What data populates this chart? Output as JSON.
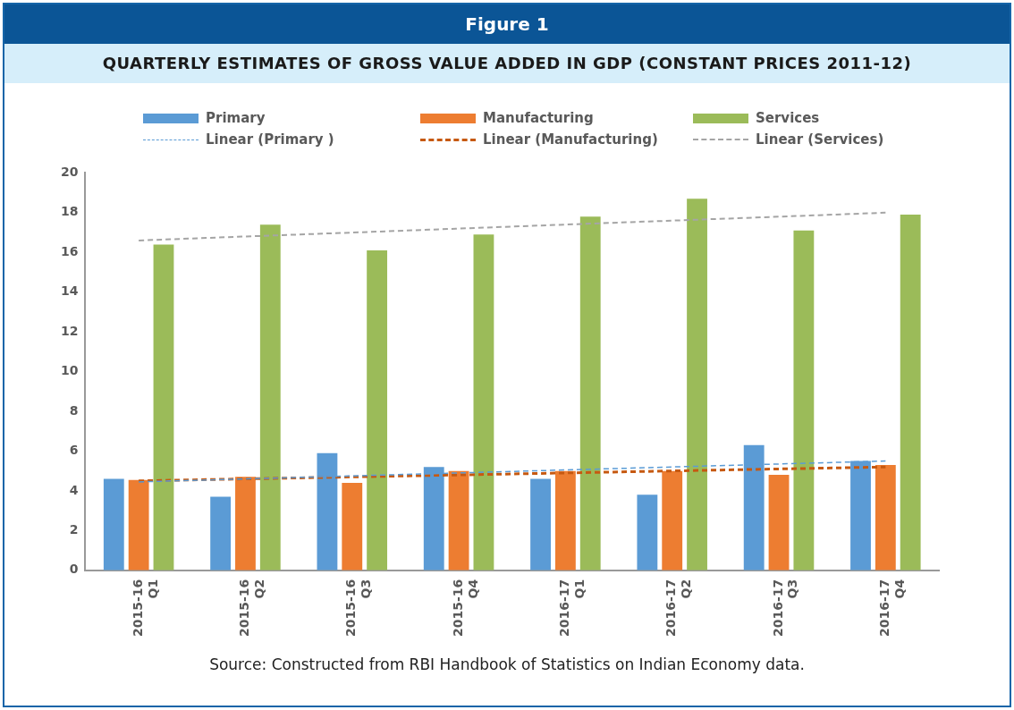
{
  "chart_data": {
    "type": "bar",
    "title": "Figure 1",
    "subtitle": "QUARTERLY ESTIMATES OF GROSS VALUE ADDED IN GDP (CONSTANT PRICES 2011-12)",
    "categories": [
      "2015-16 Q1",
      "2015-16 Q2",
      "2015-16 Q3",
      "2015-16 Q4",
      "2016-17 Q1",
      "2016-17 Q2",
      "2016-17 Q3",
      "2016-17 Q4"
    ],
    "series": [
      {
        "name": "Primary",
        "color": "#5b9bd5",
        "values": [
          4.6,
          3.7,
          5.9,
          5.2,
          4.6,
          3.8,
          6.3,
          5.5
        ]
      },
      {
        "name": "Manufacturing",
        "color": "#ed7d31",
        "values": [
          4.55,
          4.7,
          4.4,
          5.0,
          5.0,
          5.0,
          4.8,
          5.3
        ]
      },
      {
        "name": "Services",
        "color": "#9bbb59",
        "values": [
          16.4,
          17.4,
          16.1,
          16.9,
          17.8,
          18.7,
          17.1,
          17.9
        ]
      },
      {
        "name": "Linear (Primary )",
        "type": "line",
        "line_style": "dashed",
        "marker": "none",
        "color": "#5b9bd5",
        "values": [
          4.45,
          4.6,
          4.75,
          4.9,
          5.05,
          5.2,
          5.35,
          5.5
        ]
      },
      {
        "name": "Linear (Manufacturing)",
        "type": "line",
        "line_style": "dashed",
        "marker": "none",
        "color": "#c65911",
        "values": [
          4.5,
          4.6,
          4.7,
          4.8,
          4.9,
          5.0,
          5.1,
          5.2
        ]
      },
      {
        "name": "Linear (Services)",
        "type": "line",
        "line_style": "dashed",
        "marker": "none",
        "color": "#a5a5a5",
        "values": [
          16.6,
          16.8,
          17.0,
          17.2,
          17.4,
          17.6,
          17.8,
          18.0
        ]
      }
    ],
    "ylim": [
      0,
      20
    ],
    "yticks": [
      0,
      2,
      4,
      6,
      8,
      10,
      12,
      14,
      16,
      18,
      20
    ],
    "grid": false,
    "legend": "top",
    "annotations": [
      "Source: Constructed from RBI Handbook of Statistics on Indian Economy data."
    ]
  }
}
